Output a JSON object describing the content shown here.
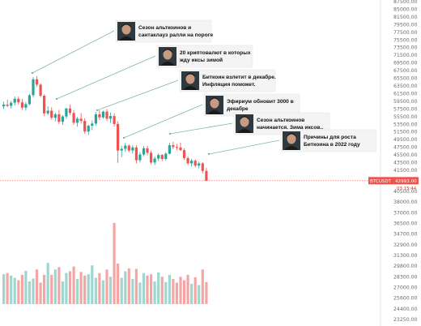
{
  "chart_data": {
    "type": "candlestick",
    "symbol": "BTCUSDT",
    "current_price": "42993.00",
    "countdown": "03:15:44",
    "price_axis": {
      "ticks": [
        "87500.00",
        "85000.00",
        "81500.00",
        "79500.00",
        "77500.00",
        "75500.00",
        "73500.00",
        "71500.00",
        "69500.00",
        "67500.00",
        "65500.00",
        "63500.00",
        "61500.00",
        "59500.00",
        "57500.00",
        "55500.00",
        "53500.00",
        "51500.00",
        "49500.00",
        "47500.00",
        "45500.00",
        "43500.00",
        "41500.00"
      ],
      "lower_ticks": [
        "40500.00",
        "38000.00",
        "37000.00",
        "36500.00",
        "34700.00",
        "32900.00",
        "31300.00",
        "29800.00",
        "28300.00",
        "27000.00",
        "25600.00",
        "24400.00",
        "23250.00"
      ]
    },
    "candles": [
      [
        59800,
        60900,
        59200,
        60200
      ],
      [
        60200,
        61300,
        59600,
        59900
      ],
      [
        59900,
        61000,
        59300,
        60600
      ],
      [
        60600,
        62000,
        60000,
        61500
      ],
      [
        61500,
        62000,
        60200,
        60700
      ],
      [
        60700,
        61500,
        59000,
        59500
      ],
      [
        59500,
        60800,
        58800,
        60300
      ],
      [
        60300,
        62600,
        60000,
        62300
      ],
      [
        62300,
        66400,
        61800,
        65900
      ],
      [
        65900,
        66600,
        64200,
        64700
      ],
      [
        64700,
        65000,
        61800,
        62200
      ],
      [
        62200,
        62500,
        57600,
        58200
      ],
      [
        58200,
        59800,
        57800,
        58800
      ],
      [
        58800,
        59600,
        56800,
        57200
      ],
      [
        57200,
        58400,
        56400,
        58000
      ],
      [
        58000,
        59000,
        55800,
        56300
      ],
      [
        56300,
        57800,
        55600,
        57500
      ],
      [
        57500,
        59500,
        57000,
        59300
      ],
      [
        59300,
        60200,
        57800,
        58300
      ],
      [
        58300,
        59000,
        55600,
        56100
      ],
      [
        56100,
        57400,
        55200,
        57000
      ],
      [
        57000,
        58300,
        55900,
        56500
      ],
      [
        56500,
        57100,
        53600,
        54100
      ],
      [
        54100,
        55700,
        53300,
        55400
      ],
      [
        55400,
        56600,
        54400,
        55900
      ],
      [
        55900,
        58500,
        55400,
        58000
      ],
      [
        58000,
        58900,
        56700,
        57300
      ],
      [
        57300,
        58800,
        57000,
        58600
      ],
      [
        58600,
        59200,
        56500,
        57000
      ],
      [
        57000,
        58400,
        56000,
        57600
      ],
      [
        57600,
        58200,
        55200,
        55800
      ],
      [
        55800,
        56400,
        47000,
        49800
      ],
      [
        49800,
        50900,
        48300,
        50200
      ],
      [
        50200,
        51500,
        49500,
        50900
      ],
      [
        50900,
        51200,
        49400,
        49800
      ],
      [
        49800,
        51000,
        49100,
        50500
      ],
      [
        50500,
        51000,
        46900,
        47600
      ],
      [
        47600,
        49400,
        47100,
        48900
      ],
      [
        48900,
        50800,
        48500,
        50300
      ],
      [
        50300,
        50900,
        48700,
        49300
      ],
      [
        49300,
        49800,
        46700,
        47100
      ],
      [
        47100,
        48500,
        46500,
        48000
      ],
      [
        48000,
        49200,
        47400,
        48800
      ],
      [
        48800,
        49000,
        47400,
        47900
      ],
      [
        47900,
        49400,
        47500,
        49100
      ],
      [
        49100,
        51500,
        48900,
        51000
      ],
      [
        51000,
        51800,
        50100,
        50600
      ],
      [
        50600,
        51300,
        49900,
        50500
      ],
      [
        50500,
        51600,
        49700,
        49900
      ],
      [
        49900,
        50300,
        47700,
        48100
      ],
      [
        48100,
        48500,
        46500,
        46900
      ],
      [
        46900,
        47900,
        46200,
        47500
      ],
      [
        47500,
        47800,
        46000,
        46400
      ],
      [
        46400,
        47300,
        45800,
        46900
      ],
      [
        46900,
        47200,
        44600,
        45200
      ],
      [
        45200,
        45900,
        42900,
        43000
      ]
    ],
    "volumes": [
      27000,
      27200,
      26800,
      26400,
      26000,
      26900,
      27600,
      25800,
      26300,
      27800,
      25600,
      26900,
      28900,
      26900,
      27800,
      28200,
      25800,
      27200,
      27500,
      28300,
      26200,
      27400,
      26800,
      27000,
      28500,
      26400,
      27200,
      26000,
      27800,
      26600,
      35600,
      28800,
      26400,
      27500,
      28000,
      26200,
      27900,
      25600,
      27200,
      26800,
      27000,
      25800,
      27300,
      26600,
      25700,
      26900,
      26200,
      25600,
      26600,
      26000,
      26900,
      25400,
      26500,
      25200,
      27800,
      25700
    ],
    "annotations": [
      {
        "line1": "Сезон альткоинов и",
        "line2": "сантаклауз ралли на пороге"
      },
      {
        "line1": "20 криптовалют в которых",
        "line2": "жду иксы зимой"
      },
      {
        "line1": "Биткоин взлетит в декабре.",
        "line2": "Инфляция поможет."
      },
      {
        "line1": "Эфириум обновит 3000 в",
        "line2": "декабре"
      },
      {
        "line1": "Сезон альткоинов",
        "line2": "начинается. Зима иксов.."
      },
      {
        "line1": "Причины для роста",
        "line2": "Биткоина в 2022 году"
      }
    ],
    "colors": {
      "up": "#26a69a",
      "down": "#ef5350",
      "up_volume": "#9fd6d0",
      "down_volume": "#f5a6a4",
      "current_price": "#ef5350",
      "annotation_line": "#7fb3b0"
    }
  }
}
